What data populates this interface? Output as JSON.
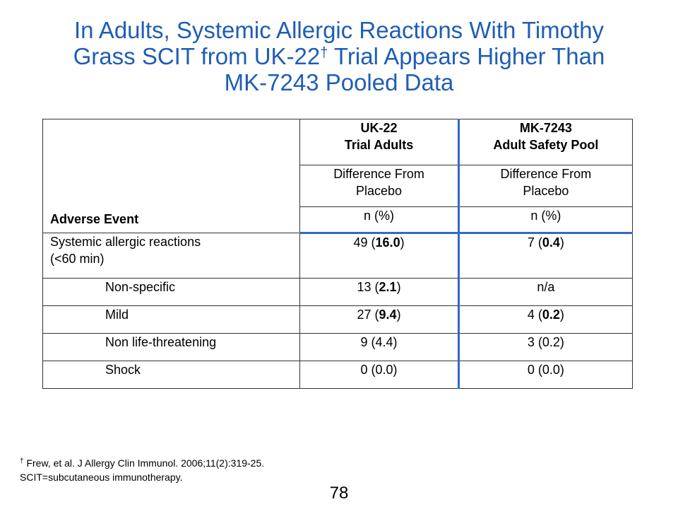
{
  "title": {
    "line1": "In Adults, Systemic Allergic Reactions With Timothy",
    "line2_pre": "Grass SCIT from UK-22",
    "line2_sup": "†",
    "line2_post": " Trial Appears Higher Than",
    "line3": "MK-7243 Pooled Data"
  },
  "table": {
    "header": {
      "adverse_event": "Adverse Event",
      "col1_line1": "UK-22",
      "col1_line2": "Trial Adults",
      "col2_line1": "MK-7243",
      "col2_line2": "Adult Safety Pool",
      "diff_line1": "Difference From",
      "diff_line2": "Placebo",
      "unit": "n (%)"
    },
    "rows": [
      {
        "label_line1": "Systemic allergic reactions",
        "label_line2": "(<60 min)",
        "uk22_n": "49",
        "uk22_pct": "16.0",
        "mk_n": "7",
        "mk_pct": "0.4"
      },
      {
        "label": "Non-specific",
        "uk22_n": "13",
        "uk22_pct": "2.1",
        "mk": "n/a"
      },
      {
        "label": "Mild",
        "uk22_n": "27",
        "uk22_pct": "9.4",
        "mk_n": "4",
        "mk_pct": "0.2"
      },
      {
        "label": "Non life-threatening",
        "uk22": "9 (4.4)",
        "mk": "3 (0.2)"
      },
      {
        "label": "Shock",
        "uk22": "0 (0.0)",
        "mk": "0 (0.0)"
      }
    ]
  },
  "footnote": {
    "marker": "†",
    "ref": " Frew, et al. J Allergy Clin Immunol. 2006;11(2):319-25.",
    "abbr": "SCIT=subcutaneous immunotherapy."
  },
  "page_number": "78",
  "colors": {
    "title": "#1F5DB5",
    "divider": "#2F6CC4"
  }
}
